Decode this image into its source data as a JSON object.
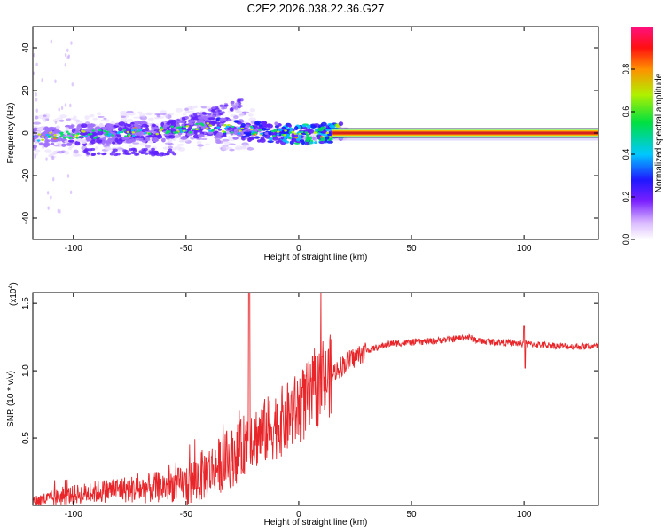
{
  "title": "C2E2.2026.038.22.36.G27",
  "chart_data": [
    {
      "type": "heatmap",
      "name": "spectrogram",
      "xlabel": "Height of straight line (km)",
      "ylabel": "Frequency (Hz)",
      "xlim": [
        -118,
        133
      ],
      "ylim": [
        -50,
        50
      ],
      "xticks": [
        -100,
        -50,
        0,
        50,
        100
      ],
      "xtick_labels": [
        "-100",
        "-50",
        "0",
        "50",
        "100"
      ],
      "yticks": [
        -40,
        -20,
        0,
        20,
        40
      ],
      "ytick_labels": [
        "-40",
        "-20",
        "0",
        "20",
        "40"
      ],
      "description_points": {
        "trend_x": [
          -118,
          -100,
          -80,
          -60,
          -50,
          -40,
          -30,
          -20,
          -10,
          0,
          10,
          20,
          133
        ],
        "trend_y": [
          -2,
          -1,
          0,
          1,
          2,
          3,
          2,
          1,
          0,
          -1,
          0,
          0,
          0
        ],
        "strength": [
          0.35,
          0.4,
          0.45,
          0.5,
          0.5,
          0.5,
          0.55,
          0.6,
          0.7,
          0.8,
          0.85,
          0.95,
          0.95
        ]
      }
    },
    {
      "type": "colorbar",
      "name": "amplitude-colorbar",
      "label": "Normalized spectral amplitude",
      "range": [
        0,
        1
      ],
      "ticks": [
        0.0,
        0.2,
        0.4,
        0.6,
        0.8
      ],
      "tick_labels": [
        "0.0",
        "0.2",
        "0.4",
        "0.6",
        "0.8"
      ]
    },
    {
      "type": "line",
      "name": "snr",
      "xlabel": "Height of straight line (km)",
      "ylabel": "SNR (10 * v/v)",
      "scale_label": "(x10",
      "scale_exponent": "4",
      "scale_suffix": ")",
      "xlim": [
        -118,
        133
      ],
      "ylim": [
        0,
        1.58
      ],
      "xticks": [
        -100,
        -50,
        0,
        50,
        100
      ],
      "xtick_labels": [
        "-100",
        "-50",
        "0",
        "50",
        "100"
      ],
      "yticks": [
        0.5,
        1.0,
        1.5
      ],
      "ytick_labels": [
        "0.5",
        "1.0",
        "1.5"
      ],
      "color": "#e8262a",
      "x": [
        -118,
        -110,
        -100,
        -90,
        -80,
        -70,
        -60,
        -50,
        -45,
        -40,
        -35,
        -30,
        -25,
        -22,
        -20,
        -15,
        -10,
        -5,
        0,
        5,
        10,
        15,
        20,
        25,
        30,
        40,
        50,
        60,
        70,
        75,
        80,
        90,
        100,
        110,
        120,
        133
      ],
      "y": [
        0.03,
        0.05,
        0.08,
        0.1,
        0.12,
        0.12,
        0.14,
        0.16,
        0.2,
        0.25,
        0.3,
        0.35,
        0.42,
        0.55,
        0.5,
        0.55,
        0.6,
        0.65,
        0.72,
        0.8,
        0.9,
        0.98,
        1.05,
        1.1,
        1.15,
        1.2,
        1.21,
        1.22,
        1.24,
        1.25,
        1.22,
        1.21,
        1.2,
        1.19,
        1.18,
        1.18
      ]
    }
  ],
  "colors": {
    "line": "#e8262a",
    "axes": "#000000",
    "trace_core": "#d62020"
  }
}
